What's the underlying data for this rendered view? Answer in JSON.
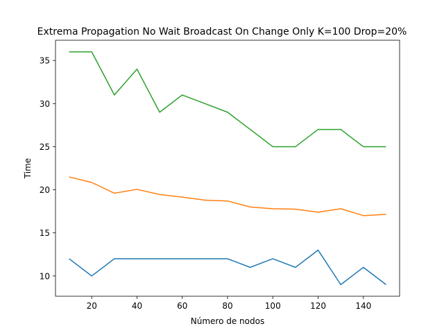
{
  "chart_data": {
    "type": "line",
    "title": "Extrema Propagation No Wait Broadcast On Change Only K=100 Drop=20%",
    "xlabel": "Número de nodos",
    "ylabel": "Time",
    "xlim": [
      4,
      156
    ],
    "ylim": [
      7.65,
      37.35
    ],
    "x": [
      10,
      20,
      30,
      40,
      50,
      60,
      70,
      80,
      90,
      100,
      110,
      120,
      130,
      140,
      150
    ],
    "xticks": [
      "20",
      "40",
      "60",
      "80",
      "100",
      "120",
      "140"
    ],
    "yticks": [
      "10",
      "15",
      "20",
      "25",
      "30",
      "35"
    ],
    "grid": false,
    "series": [
      {
        "color": "#1f77b4",
        "values": [
          12,
          10,
          12,
          12,
          12,
          12,
          12,
          12,
          11,
          12,
          11,
          13,
          9,
          11,
          9
        ]
      },
      {
        "color": "#ff7f0e",
        "values": [
          21.5,
          20.85,
          19.6,
          20.05,
          19.45,
          19.15,
          18.8,
          18.7,
          18.0,
          17.8,
          17.75,
          17.4,
          17.8,
          17.0,
          17.15
        ]
      },
      {
        "color": "#2ca02c",
        "values": [
          36,
          36,
          31,
          34,
          29,
          31,
          30,
          29,
          27,
          25,
          25,
          27,
          27,
          25,
          25
        ]
      }
    ]
  }
}
